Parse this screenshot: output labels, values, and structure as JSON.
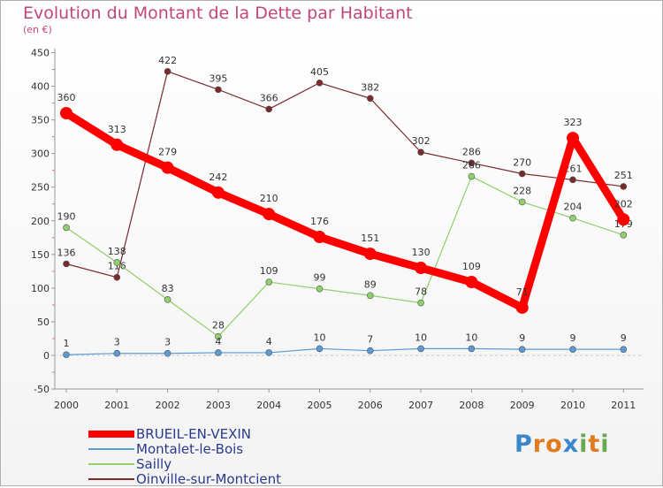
{
  "header": {
    "title": "Evolution du Montant de la Dette par Habitant",
    "subtitle": "(en €)"
  },
  "brand": {
    "name": "Proxiti",
    "letters": [
      "P",
      "r",
      "o",
      "x",
      "i",
      "t",
      "i"
    ],
    "colors": [
      "#3a86c8",
      "#e07b1f",
      "#e07b1f",
      "#3a86c8",
      "#6aa84f",
      "#e07b1f",
      "#6aa84f"
    ]
  },
  "chart_data": {
    "type": "line",
    "title": "Evolution du Montant de la Dette par Habitant",
    "ylabel": "(en €)",
    "categories": [
      "2000",
      "2001",
      "2002",
      "2003",
      "2004",
      "2005",
      "2006",
      "2007",
      "2008",
      "2009",
      "2010",
      "2011"
    ],
    "ylim": [
      -50,
      450
    ],
    "yticks": [
      -50,
      0,
      50,
      100,
      150,
      200,
      250,
      300,
      350,
      400,
      450
    ],
    "yticks_text": [
      "-50",
      "0",
      "50",
      "100",
      "150",
      "200",
      "250",
      "300",
      "350",
      "400",
      "450"
    ],
    "series": [
      {
        "name": "Oinville-sur-Montcient",
        "color": "#7a2a2a",
        "width": 1.2,
        "marker": 3.5,
        "values": [
          136,
          116,
          422,
          395,
          366,
          405,
          382,
          302,
          286,
          270,
          261,
          251
        ],
        "labels": [
          "136",
          "116",
          "422",
          "395",
          "366",
          "405",
          "382",
          "302",
          "286",
          "270",
          "261",
          "251"
        ]
      },
      {
        "name": "Sailly",
        "color": "#8fd06a",
        "width": 1.2,
        "marker": 3.5,
        "values": [
          190,
          138,
          83,
          28,
          109,
          99,
          89,
          78,
          266,
          228,
          204,
          179
        ],
        "labels": [
          "190",
          "138",
          "83",
          "28",
          "109",
          "99",
          "89",
          "78",
          "266",
          "228",
          "204",
          "179"
        ]
      },
      {
        "name": "Montalet-le-Bois",
        "color": "#5b9bd5",
        "width": 1.2,
        "marker": 3.5,
        "values": [
          1,
          3,
          3,
          4,
          4,
          10,
          7,
          10,
          10,
          9,
          9,
          9
        ],
        "labels": [
          "1",
          "3",
          "3",
          "4",
          "4",
          "10",
          "7",
          "10",
          "10",
          "9",
          "9",
          "9"
        ]
      },
      {
        "name": "BRUEIL-EN-VEXIN",
        "color": "#ff0000",
        "width": 9,
        "marker": 7,
        "values": [
          360,
          313,
          279,
          242,
          210,
          176,
          151,
          130,
          109,
          71,
          323,
          202
        ],
        "labels": [
          "360",
          "313",
          "279",
          "242",
          "210",
          "176",
          "151",
          "130",
          "109",
          "71",
          "323",
          "202"
        ]
      }
    ],
    "legend": [
      "BRUEIL-EN-VEXIN",
      "Montalet-le-Bois",
      "Sailly",
      "Oinville-sur-Montcient"
    ]
  }
}
